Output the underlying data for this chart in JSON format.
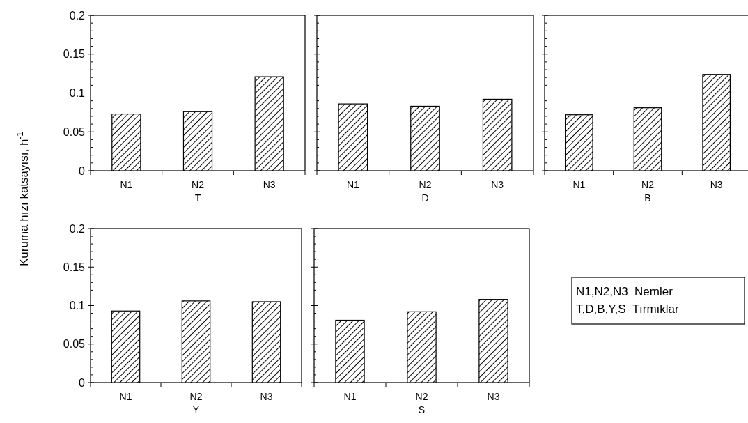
{
  "chart_data": [
    {
      "type": "bar",
      "xlabel": "T",
      "ylabel": "Kuruma hızı katsayısı, h$^{-1}$",
      "categories": [
        "N1",
        "N2",
        "N3"
      ],
      "values": [
        0.073,
        0.076,
        0.121
      ],
      "color": "#000000",
      "ylim": [
        0,
        0.2
      ],
      "yticks": [
        0,
        {
          "value": 0.01,
          "label": null
        },
        {
          "value": 0.02,
          "label": null
        },
        {
          "value": 0.03,
          "label": null
        },
        {
          "value": 0.04,
          "label": null
        },
        0.05,
        {
          "value": 0.06,
          "label": null
        },
        {
          "value": 0.07,
          "label": null
        },
        {
          "value": 0.08,
          "label": null
        },
        {
          "value": 0.09,
          "label": null
        },
        0.1,
        {
          "value": 0.11,
          "label": null
        },
        {
          "value": 0.12,
          "label": null
        },
        {
          "value": 0.13,
          "label": null
        },
        {
          "value": 0.14,
          "label": null
        },
        0.15,
        {
          "value": 0.16,
          "label": null
        },
        {
          "value": 0.17,
          "label": null
        },
        {
          "value": 0.18,
          "label": null
        },
        {
          "value": 0.19,
          "label": null
        },
        0.2
      ]
    },
    {
      "type": "bar",
      "xlabel": "D",
      "categories": [
        "N1",
        "N2",
        "N3"
      ],
      "values": [
        0.086,
        0.083,
        0.092
      ],
      "color": "#000000",
      "ylim": [
        0,
        0.2
      ],
      "yticks": [
        0,
        {
          "value": 0.01,
          "label": null
        },
        {
          "value": 0.02,
          "label": null
        },
        {
          "value": 0.03,
          "label": null
        },
        {
          "value": 0.04,
          "label": null
        },
        0.05,
        {
          "value": 0.06,
          "label": null
        },
        {
          "value": 0.07,
          "label": null
        },
        {
          "value": 0.08,
          "label": null
        },
        {
          "value": 0.09,
          "label": null
        },
        0.1,
        {
          "value": 0.11,
          "label": null
        },
        {
          "value": 0.12,
          "label": null
        },
        {
          "value": 0.13,
          "label": null
        },
        {
          "value": 0.14,
          "label": null
        },
        0.15,
        {
          "value": 0.16,
          "label": null
        },
        {
          "value": 0.17,
          "label": null
        },
        {
          "value": 0.18,
          "label": null
        },
        {
          "value": 0.19,
          "label": null
        },
        0.2
      ],
      "tick_labels": "x"
    },
    {
      "type": "bar",
      "xlabel": "B",
      "categories": [
        "N1",
        "N2",
        "N3"
      ],
      "values": [
        0.072,
        0.081,
        0.124
      ],
      "color": "#000000",
      "ylim": [
        0,
        0.2
      ],
      "yticks": [
        0,
        {
          "value": 0.01,
          "label": null
        },
        {
          "value": 0.02,
          "label": null
        },
        {
          "value": 0.03,
          "label": null
        },
        {
          "value": 0.04,
          "label": null
        },
        0.05,
        {
          "value": 0.06,
          "label": null
        },
        {
          "value": 0.07,
          "label": null
        },
        {
          "value": 0.08,
          "label": null
        },
        {
          "value": 0.09,
          "label": null
        },
        0.1,
        {
          "value": 0.11,
          "label": null
        },
        {
          "value": 0.12,
          "label": null
        },
        {
          "value": 0.13,
          "label": null
        },
        {
          "value": 0.14,
          "label": null
        },
        0.15,
        {
          "value": 0.16,
          "label": null
        },
        {
          "value": 0.17,
          "label": null
        },
        {
          "value": 0.18,
          "label": null
        },
        {
          "value": 0.19,
          "label": null
        },
        0.2
      ],
      "tick_labels": "x"
    },
    {
      "type": "bar",
      "xlabel": "Y",
      "categories": [
        "N1",
        "N2",
        "N3"
      ],
      "values": [
        0.093,
        0.106,
        0.105
      ],
      "color": "#000000",
      "ylim": [
        0,
        0.2
      ],
      "yticks": [
        0,
        {
          "value": 0.01,
          "label": null
        },
        {
          "value": 0.02,
          "label": null
        },
        {
          "value": 0.03,
          "label": null
        },
        {
          "value": 0.04,
          "label": null
        },
        0.05,
        {
          "value": 0.06,
          "label": null
        },
        {
          "value": 0.07,
          "label": null
        },
        {
          "value": 0.08,
          "label": null
        },
        {
          "value": 0.09,
          "label": null
        },
        0.1,
        {
          "value": 0.11,
          "label": null
        },
        {
          "value": 0.12,
          "label": null
        },
        {
          "value": 0.13,
          "label": null
        },
        {
          "value": 0.14,
          "label": null
        },
        0.15,
        {
          "value": 0.16,
          "label": null
        },
        {
          "value": 0.17,
          "label": null
        },
        {
          "value": 0.18,
          "label": null
        },
        {
          "value": 0.19,
          "label": null
        },
        0.2
      ]
    },
    {
      "type": "bar",
      "xlabel": "S",
      "categories": [
        "N1",
        "N2",
        "N3"
      ],
      "values": [
        0.081,
        0.092,
        0.108
      ],
      "color": "#000000",
      "ylim": [
        0,
        0.2
      ],
      "yticks": [
        0,
        {
          "value": 0.01,
          "label": null
        },
        {
          "value": 0.02,
          "label": null
        },
        {
          "value": 0.03,
          "label": null
        },
        {
          "value": 0.04,
          "label": null
        },
        0.05,
        {
          "value": 0.06,
          "label": null
        },
        {
          "value": 0.07,
          "label": null
        },
        {
          "value": 0.08,
          "label": null
        },
        {
          "value": 0.09,
          "label": null
        },
        0.1,
        {
          "value": 0.11,
          "label": null
        },
        {
          "value": 0.12,
          "label": null
        },
        {
          "value": 0.13,
          "label": null
        },
        {
          "value": 0.14,
          "label": null
        },
        0.15,
        {
          "value": 0.16,
          "label": null
        },
        {
          "value": 0.17,
          "label": null
        },
        {
          "value": 0.18,
          "label": null
        },
        {
          "value": 0.19,
          "label": null
        },
        0.2
      ],
      "tick_labels": "x"
    },
    {
      "type": "other",
      "annotations": [
        "N1,N2,N3  Nemler",
        "T,D,B,Y,S  Tırmıklar"
      ]
    }
  ]
}
